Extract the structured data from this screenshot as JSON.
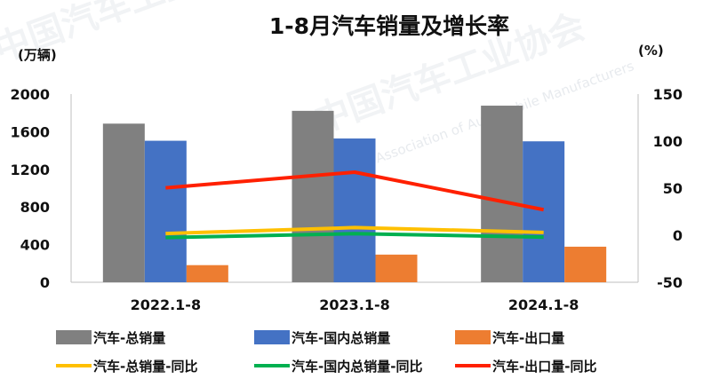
{
  "chart_data": {
    "type": "bar",
    "title": "1-8月汽车销量及增长率",
    "y_left_unit": "(万辆)",
    "y_right_unit": "(%)",
    "categories": [
      "2022.1-8",
      "2023.1-8",
      "2024.1-8"
    ],
    "y_left": {
      "min": 0,
      "max": 2000,
      "ticks": [
        0,
        400,
        800,
        1200,
        1600,
        2000
      ]
    },
    "y_right": {
      "min": -50,
      "max": 150,
      "ticks": [
        -50,
        0,
        50,
        100,
        150
      ]
    },
    "bar_series": [
      {
        "name": "汽车-总销量",
        "color": "#808080",
        "values": [
          1686,
          1822,
          1877
        ]
      },
      {
        "name": "汽车-国内总销量",
        "color": "#4472c4",
        "values": [
          1504,
          1528,
          1498
        ]
      },
      {
        "name": "汽车-出口量",
        "color": "#ed7d31",
        "values": [
          182,
          294,
          378
        ]
      }
    ],
    "line_series": [
      {
        "name": "汽车-总销量-同比",
        "color": "#ffc000",
        "values": [
          1.8,
          8.1,
          3.0
        ]
      },
      {
        "name": "汽车-国内总销量-同比",
        "color": "#00b050",
        "values": [
          -2.5,
          1.6,
          -2.0
        ]
      },
      {
        "name": "汽车-出口量-同比",
        "color": "#ff2000",
        "values": [
          50.4,
          67.0,
          27.1
        ]
      }
    ],
    "legend_position": "bottom",
    "grid": false
  },
  "watermark": {
    "cn": "中国汽车工业协会",
    "en": "China Association of Automobile Manufacturers"
  }
}
